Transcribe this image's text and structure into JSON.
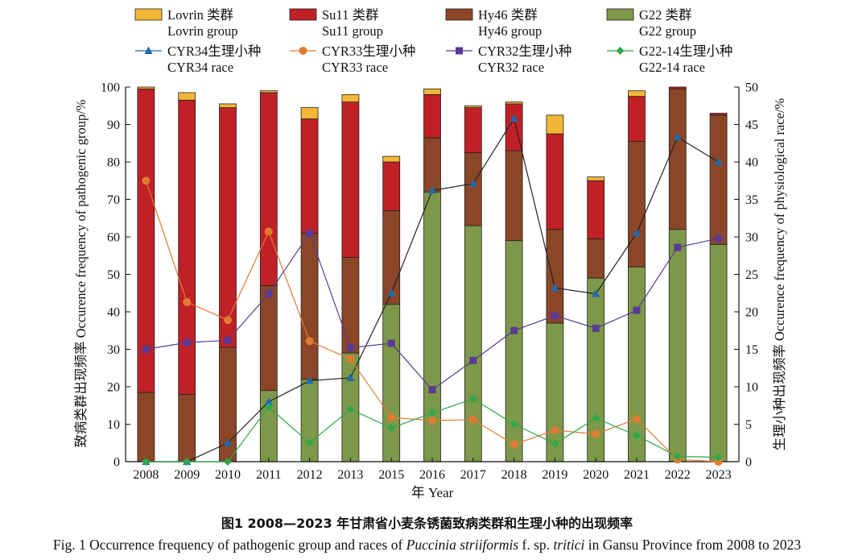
{
  "chart_data": {
    "type": "bar",
    "stacked": true,
    "categories": [
      "2008",
      "2009",
      "2010",
      "2011",
      "2012",
      "2013",
      "2015",
      "2016",
      "2017",
      "2018",
      "2019",
      "2020",
      "2021",
      "2022",
      "2023"
    ],
    "left_axis": {
      "label": "致病类群出现频率 Occurence frequency of pathogenic group/%",
      "ylim": [
        0,
        100
      ],
      "ticks": [
        0,
        10,
        20,
        30,
        40,
        50,
        60,
        70,
        80,
        90,
        100
      ]
    },
    "right_axis": {
      "label": "生理小种出现频率 Occurence frequency of physiological race/%",
      "ylim": [
        0,
        50
      ],
      "ticks": [
        0,
        5,
        10,
        15,
        20,
        25,
        30,
        35,
        40,
        45,
        50
      ]
    },
    "x_axis": {
      "label": "年 Year"
    },
    "bar_series": [
      {
        "name": "G22 类群",
        "name2": "G22 group",
        "color": "#7e9849",
        "values": [
          0,
          0,
          0,
          19,
          22,
          29,
          42,
          72,
          63,
          59,
          37,
          49,
          52,
          62,
          58
        ]
      },
      {
        "name": "Hy46 类群",
        "name2": "Hy46 group",
        "color": "#8a4626",
        "values": [
          18.5,
          18,
          30.5,
          28,
          39,
          25.5,
          25,
          14.5,
          19.5,
          24,
          25,
          10.5,
          33.5,
          37.5,
          34.5
        ]
      },
      {
        "name": "Su11 类群",
        "name2": "Su11 group",
        "color": "#bf2126",
        "values": [
          81,
          78.5,
          64,
          51.5,
          30.5,
          41.5,
          13,
          11.5,
          12,
          12.5,
          25.5,
          15.5,
          12,
          0.5,
          0.5
        ]
      },
      {
        "name": "Lovrin 类群",
        "name2": "Lovrin group",
        "color": "#f2b737",
        "values": [
          0.5,
          2,
          1,
          0.5,
          3,
          2,
          1.5,
          1.5,
          0.5,
          0.5,
          5,
          1,
          1.5,
          0,
          0
        ]
      }
    ],
    "line_series": [
      {
        "name": "CYR34生理小种",
        "name2": "CYR34 race",
        "color": "#1f6ab0",
        "marker": "triangle",
        "values": [
          0,
          0,
          2.5,
          8,
          10.8,
          11.2,
          22.5,
          36.2,
          37.1,
          45.8,
          23.2,
          22.4,
          30.5,
          43.3,
          40
        ]
      },
      {
        "name": "CYR33生理小种",
        "name2": "CYR33 race",
        "color": "#e07b33",
        "marker": "circle",
        "values": [
          37.5,
          21.3,
          18.9,
          30.7,
          16.1,
          13.7,
          5.9,
          5.5,
          5.6,
          2.3,
          4.2,
          3.7,
          5.7,
          0.3,
          0
        ]
      },
      {
        "name": "CYR32生理小种",
        "name2": "CYR32 race",
        "color": "#5b3a93",
        "marker": "square",
        "values": [
          15,
          15.9,
          16.2,
          22.4,
          30.5,
          15.2,
          15.8,
          9.6,
          13.5,
          17.5,
          19.5,
          17.8,
          20.2,
          28.6,
          29.8
        ]
      },
      {
        "name": "G22-14生理小种",
        "name2": "G22-14 race",
        "color": "#2ea84a",
        "marker": "diamond",
        "values": [
          0,
          0,
          0,
          7.3,
          2.5,
          7,
          4.5,
          6.5,
          8.4,
          5,
          2.4,
          5.8,
          3.5,
          0.7,
          0.6
        ]
      }
    ],
    "line_connector_color": "#222222"
  },
  "caption": {
    "cn": "图1  2008—2023 年甘肃省小麦条锈菌致病类群和生理小种的出现频率",
    "en_pre": "Fig. 1  Occurrence frequency of pathogenic group and races of ",
    "en_species": "Puccinia striiformis",
    "en_mid": " f. sp. ",
    "en_forma": "tritici",
    "en_post": " in Gansu Province from 2008 to 2023"
  }
}
